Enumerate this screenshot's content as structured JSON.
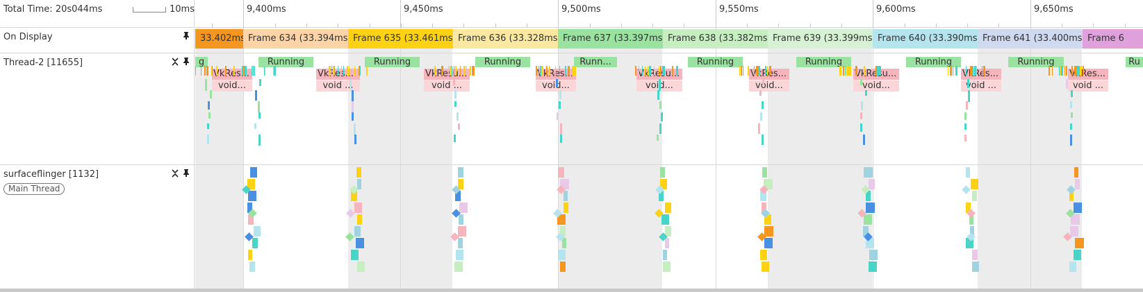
{
  "header": {
    "total_time": "Total Time: 20s044ms",
    "scale_label": "10ms",
    "ticks": [
      {
        "label": "9,400ms"
      },
      {
        "label": "9,450ms"
      },
      {
        "label": "9,500ms"
      },
      {
        "label": "9,550ms"
      },
      {
        "label": "9,600ms"
      },
      {
        "label": "9,650ms"
      }
    ]
  },
  "tracks": {
    "on_display": {
      "label": "On Display",
      "frames": [
        {
          "label": "33.402ms)",
          "color": "#f5961e"
        },
        {
          "label": "Frame 634 (33.394ms)",
          "color": "#fcd4a6"
        },
        {
          "label": "Frame 635 (33.461ms)",
          "color": "#fdd215"
        },
        {
          "label": "Frame 636 (33.328ms)",
          "color": "#fbe9a2"
        },
        {
          "label": "Frame 637 (33.397ms)",
          "color": "#99e29f"
        },
        {
          "label": "Frame 638 (33.382ms)",
          "color": "#c6eec0"
        },
        {
          "label": "Frame 639 (33.399ms)",
          "color": "#d6f1d3"
        },
        {
          "label": "Frame 640 (33.390ms)",
          "color": "#b4e4ee"
        },
        {
          "label": "Frame 641 (33.400ms)",
          "color": "#cfd9ef"
        },
        {
          "label": "Frame 6",
          "color": "#e0a0dc"
        }
      ]
    },
    "thread": {
      "label": "Thread-2 [11655]",
      "first_state": "g",
      "running_label": "Running",
      "running_short": "Runn...",
      "running_cut": "Ru",
      "vk_label": "VkRes...",
      "vk_label_alt": "VkResu...",
      "void_label": "void...",
      "void_label_alt": "void ..."
    },
    "surfaceflinger": {
      "label": "surfaceflinger [1132]",
      "pill": "Main Thread"
    }
  },
  "icons": [
    "pin-icon",
    "collapse-icon"
  ],
  "colors": {
    "running": "#99e29f",
    "vk": "#f6b5bd",
    "void": "#fbd6d9",
    "band": "#ececec"
  }
}
